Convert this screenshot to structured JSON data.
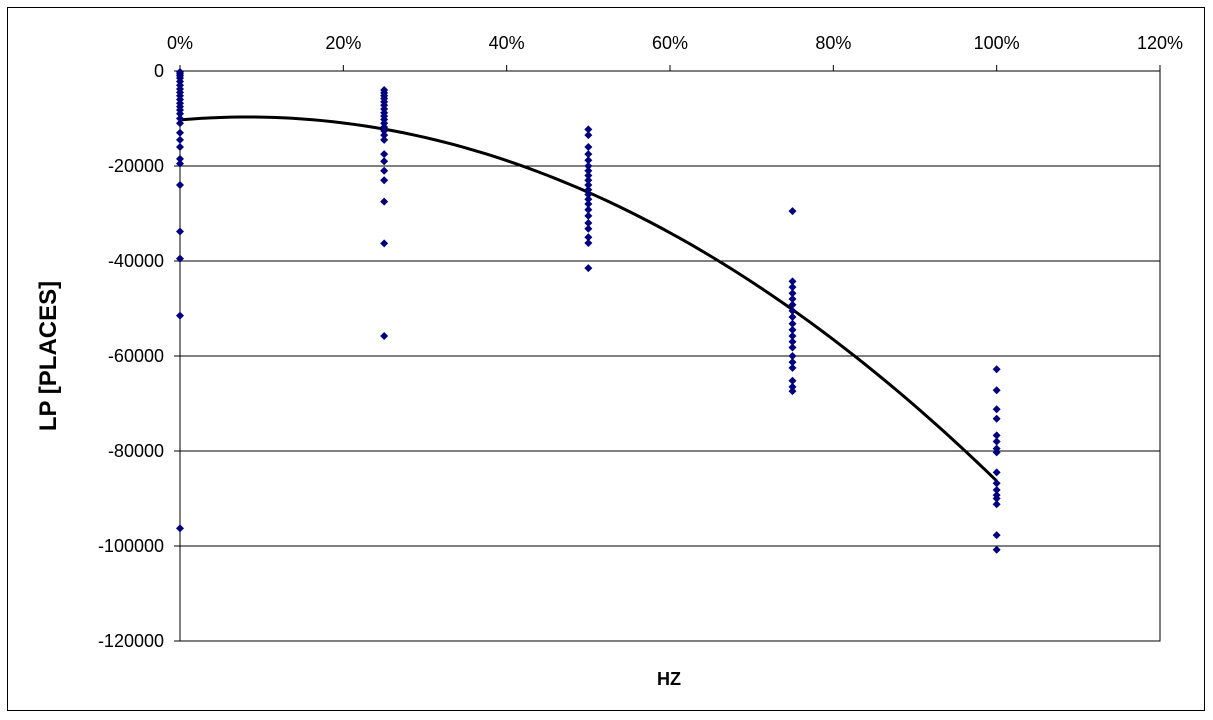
{
  "chart_data": {
    "type": "scatter",
    "title": "",
    "xlabel": "HZ",
    "ylabel": "LP [PLACES]",
    "xlim": [
      0,
      1.2
    ],
    "ylim": [
      -120000,
      0
    ],
    "x_ticks": [
      0,
      0.2,
      0.4,
      0.6,
      0.8,
      1.0,
      1.2
    ],
    "x_tick_labels": [
      "0%",
      "20%",
      "40%",
      "60%",
      "80%",
      "100%",
      "120%"
    ],
    "y_ticks": [
      0,
      -20000,
      -40000,
      -60000,
      -80000,
      -100000,
      -120000
    ],
    "y_tick_labels": [
      "0",
      "-20000",
      "-40000",
      "-60000",
      "-80000",
      "-100000",
      "-120000"
    ],
    "x_axis_position": "top",
    "grid": "horizontal",
    "legend": "none",
    "colors": {
      "points": "#00007f",
      "trendline": "#000000",
      "grid": "#000000",
      "frame": "#000000"
    },
    "series": [
      {
        "type": "scatter",
        "marker": "diamond",
        "points": [
          [
            0,
            -200
          ],
          [
            0,
            -600
          ],
          [
            0,
            -1000
          ],
          [
            0,
            -1500
          ],
          [
            0,
            -2200
          ],
          [
            0,
            -3000
          ],
          [
            0,
            -3800
          ],
          [
            0,
            -4500
          ],
          [
            0,
            -5200
          ],
          [
            0,
            -6000
          ],
          [
            0,
            -6800
          ],
          [
            0,
            -7500
          ],
          [
            0,
            -8200
          ],
          [
            0,
            -9000
          ],
          [
            0,
            -10000
          ],
          [
            0,
            -11000
          ],
          [
            0,
            -13000
          ],
          [
            0,
            -14500
          ],
          [
            0,
            -16000
          ],
          [
            0,
            -18500
          ],
          [
            0,
            -19500
          ],
          [
            0,
            -24000
          ],
          [
            0,
            -33800
          ],
          [
            0,
            -39500
          ],
          [
            0,
            -51500
          ],
          [
            0,
            -96300
          ],
          [
            0.25,
            -4000
          ],
          [
            0.25,
            -4600
          ],
          [
            0.25,
            -5200
          ],
          [
            0.25,
            -5800
          ],
          [
            0.25,
            -6500
          ],
          [
            0.25,
            -7200
          ],
          [
            0.25,
            -8000
          ],
          [
            0.25,
            -8800
          ],
          [
            0.25,
            -9500
          ],
          [
            0.25,
            -10200
          ],
          [
            0.25,
            -11000
          ],
          [
            0.25,
            -11800
          ],
          [
            0.25,
            -12600
          ],
          [
            0.25,
            -13500
          ],
          [
            0.25,
            -14500
          ],
          [
            0.25,
            -17500
          ],
          [
            0.25,
            -19000
          ],
          [
            0.25,
            -21000
          ],
          [
            0.25,
            -23000
          ],
          [
            0.25,
            -27500
          ],
          [
            0.25,
            -36300
          ],
          [
            0.25,
            -55800
          ],
          [
            0.5,
            -12300
          ],
          [
            0.5,
            -13500
          ],
          [
            0.5,
            -16000
          ],
          [
            0.5,
            -17500
          ],
          [
            0.5,
            -18800
          ],
          [
            0.5,
            -20000
          ],
          [
            0.5,
            -21000
          ],
          [
            0.5,
            -22000
          ],
          [
            0.5,
            -23000
          ],
          [
            0.5,
            -24000
          ],
          [
            0.5,
            -25000
          ],
          [
            0.5,
            -26000
          ],
          [
            0.5,
            -27000
          ],
          [
            0.5,
            -28000
          ],
          [
            0.5,
            -29200
          ],
          [
            0.5,
            -30500
          ],
          [
            0.5,
            -32000
          ],
          [
            0.5,
            -33200
          ],
          [
            0.5,
            -35000
          ],
          [
            0.5,
            -36200
          ],
          [
            0.5,
            -41500
          ],
          [
            0.75,
            -29500
          ],
          [
            0.75,
            -44300
          ],
          [
            0.75,
            -45500
          ],
          [
            0.75,
            -46800
          ],
          [
            0.75,
            -48000
          ],
          [
            0.75,
            -49200
          ],
          [
            0.75,
            -50500
          ],
          [
            0.75,
            -51800
          ],
          [
            0.75,
            -53200
          ],
          [
            0.75,
            -54500
          ],
          [
            0.75,
            -55800
          ],
          [
            0.75,
            -57000
          ],
          [
            0.75,
            -58200
          ],
          [
            0.75,
            -60000
          ],
          [
            0.75,
            -61300
          ],
          [
            0.75,
            -62500
          ],
          [
            0.75,
            -65200
          ],
          [
            0.75,
            -66500
          ],
          [
            0.75,
            -67400
          ],
          [
            1.0,
            -62800
          ],
          [
            1.0,
            -67200
          ],
          [
            1.0,
            -71200
          ],
          [
            1.0,
            -73200
          ],
          [
            1.0,
            -76700
          ],
          [
            1.0,
            -78000
          ],
          [
            1.0,
            -79500
          ],
          [
            1.0,
            -80300
          ],
          [
            1.0,
            -84500
          ],
          [
            1.0,
            -86800
          ],
          [
            1.0,
            -88200
          ],
          [
            1.0,
            -89300
          ],
          [
            1.0,
            -90000
          ],
          [
            1.0,
            -91200
          ],
          [
            1.0,
            -97700
          ],
          [
            1.0,
            -100800
          ]
        ]
      },
      {
        "type": "trendline",
        "curve": "polynomial",
        "x_range": [
          0,
          1.0
        ],
        "coefficients": [
          -10300,
          15000,
          -91000
        ]
      }
    ]
  }
}
